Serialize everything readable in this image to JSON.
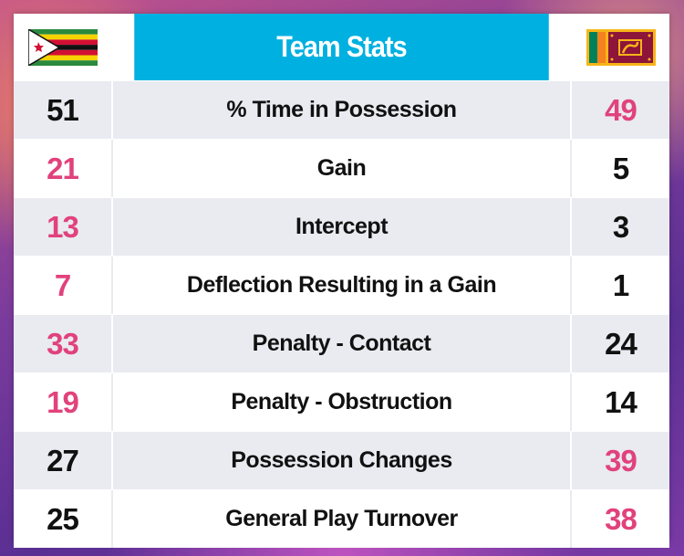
{
  "header": {
    "title": "Team Stats",
    "left_flag": "zimbabwe-flag-icon",
    "right_flag": "sri-lanka-flag-icon"
  },
  "colors": {
    "header_bg": "#00b0e0",
    "highlight": "#e1427c",
    "normal": "#111111",
    "row_shade": "#e9ebf1"
  },
  "stats": [
    {
      "label": "% Time in Possession",
      "left": "51",
      "right": "49",
      "left_color": "#111111",
      "right_color": "#e1427c"
    },
    {
      "label": "Gain",
      "left": "21",
      "right": "5",
      "left_color": "#e1427c",
      "right_color": "#111111"
    },
    {
      "label": "Intercept",
      "left": "13",
      "right": "3",
      "left_color": "#e1427c",
      "right_color": "#111111"
    },
    {
      "label": "Deflection Resulting in a Gain",
      "left": "7",
      "right": "1",
      "left_color": "#e1427c",
      "right_color": "#111111"
    },
    {
      "label": "Penalty - Contact",
      "left": "33",
      "right": "24",
      "left_color": "#e1427c",
      "right_color": "#111111"
    },
    {
      "label": "Penalty - Obstruction",
      "left": "19",
      "right": "14",
      "left_color": "#e1427c",
      "right_color": "#111111"
    },
    {
      "label": "Possession Changes",
      "left": "27",
      "right": "39",
      "left_color": "#111111",
      "right_color": "#e1427c"
    },
    {
      "label": "General Play Turnover",
      "left": "25",
      "right": "38",
      "left_color": "#111111",
      "right_color": "#e1427c"
    }
  ]
}
